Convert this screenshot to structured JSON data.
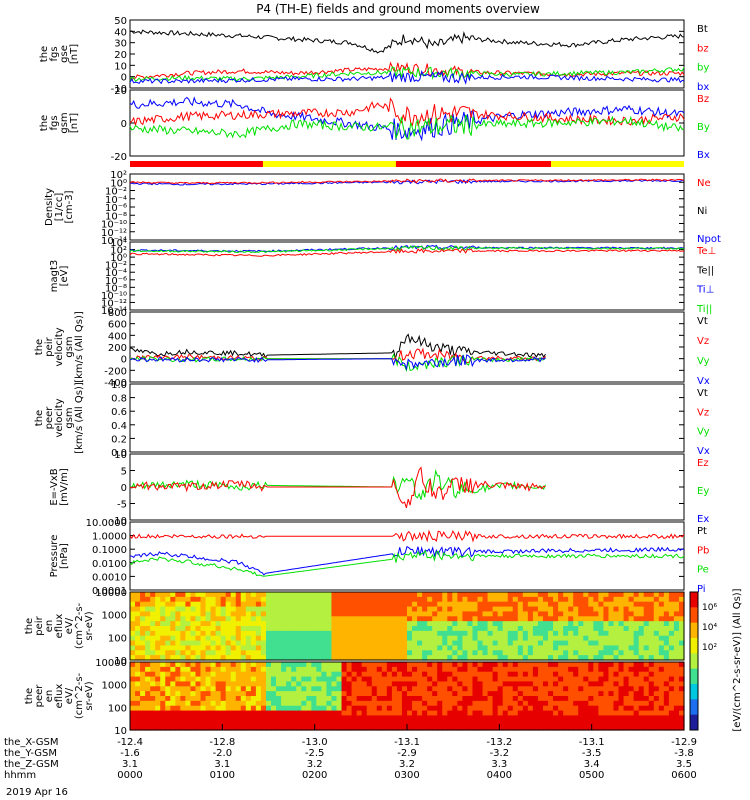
{
  "title": "P4 (TH-E) fields and ground moments overview",
  "date_label": "2019 Apr 16",
  "colors": {
    "black": "#000000",
    "red": "#ff0000",
    "green": "#00e000",
    "blue": "#0000ff",
    "yellow": "#ffff00"
  },
  "chart_data": [
    {
      "type": "line",
      "id": "fgs_gse",
      "ylabel_lines": [
        "the",
        "fgs",
        "gse",
        "[nT]"
      ],
      "ylim": [
        -10,
        50
      ],
      "ticks": [
        "50",
        "40",
        "30",
        "20",
        "10",
        "0",
        "-10"
      ],
      "legend": [
        {
          "name": "Bt",
          "color": "#000000"
        },
        {
          "name": "bz",
          "color": "#ff0000"
        },
        {
          "name": "by",
          "color": "#00e000"
        },
        {
          "name": "bx",
          "color": "#0000ff"
        }
      ],
      "series": [
        {
          "name": "Bt",
          "color": "#000000",
          "x": [
            0,
            0.1,
            0.2,
            0.3,
            0.4,
            0.45,
            0.5,
            0.55,
            0.6,
            0.7,
            0.8,
            0.9,
            1
          ],
          "values": [
            40,
            38,
            36,
            33,
            30,
            22,
            35,
            27,
            34,
            30,
            28,
            33,
            36
          ]
        },
        {
          "name": "bz",
          "color": "#ff0000",
          "x": [
            0,
            0.1,
            0.2,
            0.3,
            0.4,
            0.5,
            0.6,
            0.7,
            0.8,
            0.9,
            1
          ],
          "values": [
            -1,
            3,
            5,
            3,
            6,
            8,
            4,
            3,
            2,
            3,
            3
          ]
        },
        {
          "name": "by",
          "color": "#00e000",
          "x": [
            0,
            0.1,
            0.2,
            0.3,
            0.4,
            0.5,
            0.6,
            0.7,
            0.8,
            0.9,
            1
          ],
          "values": [
            -2,
            -1,
            -2,
            0,
            3,
            4,
            3,
            2,
            3,
            4,
            7
          ]
        },
        {
          "name": "bx",
          "color": "#0000ff",
          "x": [
            0,
            0.1,
            0.2,
            0.3,
            0.4,
            0.5,
            0.6,
            0.7,
            0.8,
            0.9,
            1
          ],
          "values": [
            -4,
            -4,
            -3,
            -2,
            -2,
            0,
            -1,
            0,
            -1,
            -2,
            -3
          ]
        }
      ]
    },
    {
      "type": "line",
      "id": "fgs_gsm",
      "ylabel_lines": [
        "the",
        "fgs",
        "gsm",
        "[nT]"
      ],
      "ylim": [
        -25,
        20
      ],
      "ticks": [
        "20",
        "0",
        "-20"
      ],
      "legend": [
        {
          "name": "Bz",
          "color": "#ff0000"
        },
        {
          "name": "By",
          "color": "#00e000"
        },
        {
          "name": "Bx",
          "color": "#0000ff"
        }
      ],
      "series": [
        {
          "name": "Bx",
          "color": "#0000ff",
          "x": [
            0,
            0.1,
            0.2,
            0.25,
            0.3,
            0.4,
            0.5,
            0.6,
            0.7,
            0.8,
            0.9,
            1
          ],
          "values": [
            10,
            12,
            10,
            4,
            2,
            -3,
            -8,
            -2,
            3,
            5,
            7,
            3
          ]
        },
        {
          "name": "Bz",
          "color": "#ff0000",
          "x": [
            0,
            0.1,
            0.2,
            0.3,
            0.4,
            0.45,
            0.5,
            0.6,
            0.7,
            0.8,
            0.9,
            1
          ],
          "values": [
            -2,
            2,
            3,
            4,
            5,
            10,
            3,
            4,
            2,
            0,
            -1,
            2
          ]
        },
        {
          "name": "By",
          "color": "#00e000",
          "x": [
            0,
            0.1,
            0.2,
            0.3,
            0.4,
            0.5,
            0.6,
            0.7,
            0.8,
            0.9,
            1
          ],
          "values": [
            -6,
            -8,
            -10,
            -3,
            -5,
            -6,
            -4,
            -3,
            -2,
            -1,
            -7
          ]
        }
      ]
    },
    {
      "type": "line",
      "id": "density",
      "log": true,
      "ylabel_lines": [
        "Density",
        "[1/cc]",
        "[cm-3]"
      ],
      "ylim": [
        -14,
        2
      ],
      "ticks": [
        "10²",
        "10⁰",
        "10⁻²",
        "10⁻⁴",
        "10⁻⁶",
        "10⁻⁸",
        "10⁻¹⁰",
        "10⁻¹²",
        "10⁻¹⁴"
      ],
      "legend": [
        {
          "name": "Ne",
          "color": "#ff0000"
        },
        {
          "name": "Ni",
          "color": "#000000"
        },
        {
          "name": "Npot",
          "color": "#0000ff"
        }
      ],
      "series": [
        {
          "name": "Npot",
          "color": "#0000ff",
          "x": [
            0,
            0.1,
            0.2,
            0.24,
            0.5,
            1
          ],
          "values": [
            -0.3,
            -0.5,
            -0.4,
            -0.4,
            0.1,
            0.4
          ]
        },
        {
          "name": "Ne",
          "color": "#ff0000",
          "x": [
            0,
            0.1,
            0.2,
            0.24,
            0.5,
            1
          ],
          "values": [
            0,
            -0.2,
            -0.1,
            -0.1,
            0.3,
            0.6
          ]
        }
      ]
    },
    {
      "type": "line",
      "id": "temperature",
      "log": true,
      "ylabel_lines": [
        "magt3",
        "[eV]"
      ],
      "ylim": [
        -14,
        6
      ],
      "ticks": [
        "10⁴",
        "10²",
        "10⁰",
        "10⁻²",
        "10⁻⁴",
        "10⁻⁶",
        "10⁻⁸",
        "10⁻¹⁰",
        "10⁻¹²",
        "10⁻¹⁴"
      ],
      "legend": [
        {
          "name": "Te⊥",
          "color": "#ff0000"
        },
        {
          "name": "Te||",
          "color": "#000000"
        },
        {
          "name": "Ti⊥",
          "color": "#0000ff"
        },
        {
          "name": "Ti||",
          "color": "#00e000"
        }
      ],
      "series": [
        {
          "name": "Ti⊥",
          "color": "#0000ff",
          "x": [
            0,
            0.24,
            0.5,
            1
          ],
          "values": [
            3.6,
            3.3,
            4.4,
            4.2
          ]
        },
        {
          "name": "Ti||",
          "color": "#00e000",
          "x": [
            0,
            0.24,
            0.5,
            1
          ],
          "values": [
            3.4,
            3.1,
            4.2,
            4.1
          ]
        },
        {
          "name": "Te⊥",
          "color": "#ff0000",
          "x": [
            0,
            0.24,
            0.5,
            1
          ],
          "values": [
            2.5,
            2.0,
            3.3,
            3.5
          ]
        }
      ]
    },
    {
      "type": "line",
      "id": "peir_velocity",
      "ylabel_lines": [
        "the",
        "peir",
        "velocity",
        "gsm",
        "[km/s (All Qs)]"
      ],
      "ylim": [
        -400,
        800
      ],
      "ticks": [
        "800",
        "600",
        "400",
        "200",
        "0",
        "-200",
        "-400"
      ],
      "legend": [
        {
          "name": "Vt",
          "color": "#000000"
        },
        {
          "name": "Vz",
          "color": "#ff0000"
        },
        {
          "name": "Vy",
          "color": "#00e000"
        },
        {
          "name": "Vx",
          "color": "#0000ff"
        }
      ],
      "series": [
        {
          "name": "Vt",
          "color": "#000000",
          "x": [
            0,
            0.05,
            0.1,
            0.2,
            0.24,
            0.48,
            0.5,
            0.52,
            0.55,
            0.6,
            0.7,
            0.75
          ],
          "values": [
            150,
            80,
            120,
            90,
            60,
            100,
            400,
            300,
            200,
            120,
            80,
            50
          ]
        },
        {
          "name": "Vz",
          "color": "#ff0000",
          "x": [
            0,
            0.1,
            0.2,
            0.24,
            0.48,
            0.5,
            0.55,
            0.6,
            0.7,
            0.75
          ],
          "values": [
            20,
            30,
            10,
            0,
            0,
            100,
            60,
            20,
            10,
            0
          ]
        },
        {
          "name": "Vy",
          "color": "#00e000",
          "x": [
            0,
            0.1,
            0.24,
            0.48,
            0.5,
            0.55,
            0.6,
            0.75
          ],
          "values": [
            0,
            -20,
            0,
            0,
            -150,
            -50,
            -30,
            0
          ]
        },
        {
          "name": "Vx",
          "color": "#0000ff",
          "x": [
            0,
            0.24,
            0.48,
            0.5,
            0.6,
            0.75
          ],
          "values": [
            -10,
            -20,
            0,
            -100,
            -30,
            -10
          ]
        }
      ]
    },
    {
      "type": "line",
      "id": "peer_velocity",
      "ylabel_lines": [
        "the",
        "peer",
        "velocity",
        "gsm",
        "[km/s (All Qs)]"
      ],
      "ylim": [
        0,
        1
      ],
      "ticks": [
        "1.0",
        "0.8",
        "0.6",
        "0.4",
        "0.2",
        "0.0"
      ],
      "legend": [
        {
          "name": "Vt",
          "color": "#000000"
        },
        {
          "name": "Vz",
          "color": "#ff0000"
        },
        {
          "name": "Vy",
          "color": "#00e000"
        },
        {
          "name": "Vx",
          "color": "#0000ff"
        }
      ],
      "series": []
    },
    {
      "type": "line",
      "id": "efield",
      "ylabel_lines": [
        "E=-VxB",
        "[mV/m]"
      ],
      "ylim": [
        -10,
        10
      ],
      "ticks": [
        "10",
        "5",
        "0",
        "-5",
        "-10"
      ],
      "legend": [
        {
          "name": "Ez",
          "color": "#ff0000"
        },
        {
          "name": "Ey",
          "color": "#00e000"
        },
        {
          "name": "Ex",
          "color": "#0000ff"
        }
      ],
      "series": [
        {
          "name": "Ey",
          "color": "#00e000",
          "x": [
            0,
            0.1,
            0.2,
            0.24,
            0.48,
            0.5,
            0.52,
            0.55,
            0.6,
            0.7,
            0.75
          ],
          "values": [
            0,
            1,
            0,
            0.5,
            0,
            5,
            -3,
            2,
            -1,
            0.5,
            0
          ]
        },
        {
          "name": "Ez",
          "color": "#ff0000",
          "x": [
            0,
            0.1,
            0.2,
            0.24,
            0.48,
            0.5,
            0.52,
            0.55,
            0.6,
            0.7,
            0.75
          ],
          "values": [
            0.5,
            0,
            1,
            0,
            0,
            -6,
            4,
            -2,
            1,
            0,
            0
          ]
        }
      ]
    },
    {
      "type": "line",
      "id": "pressure",
      "log": true,
      "ylabel_lines": [
        "Pressure",
        "[nPa]"
      ],
      "ylim": [
        -4,
        1
      ],
      "ticks": [
        "10.0000",
        "1.0000",
        "0.1000",
        "0.0100",
        "0.0010",
        "0.0001"
      ],
      "legend": [
        {
          "name": "Pt",
          "color": "#000000"
        },
        {
          "name": "Pb",
          "color": "#ff0000"
        },
        {
          "name": "Pe",
          "color": "#00e000"
        },
        {
          "name": "Pi",
          "color": "#0000ff"
        }
      ],
      "series": [
        {
          "name": "Pb",
          "color": "#ff0000",
          "x": [
            0,
            0.5,
            1
          ],
          "values": [
            -0.05,
            -0.05,
            -0.05
          ]
        },
        {
          "name": "Pi",
          "color": "#0000ff",
          "x": [
            0,
            0.05,
            0.1,
            0.2,
            0.24,
            0.48,
            0.5,
            0.6,
            0.8,
            1
          ],
          "values": [
            -1.6,
            -1.3,
            -1.5,
            -2,
            -2.8,
            -1.3,
            -1.1,
            -1.2,
            -1.1,
            -1.0
          ]
        },
        {
          "name": "Pe",
          "color": "#00e000",
          "x": [
            0,
            0.05,
            0.1,
            0.2,
            0.24,
            0.48,
            0.5,
            0.6,
            0.8,
            1
          ],
          "values": [
            -2,
            -1.7,
            -1.9,
            -2.5,
            -3,
            -1.7,
            -1.4,
            -1.5,
            -1.5,
            -1.5
          ]
        }
      ]
    },
    {
      "type": "heatmap",
      "id": "peir_eflux",
      "ylabel_lines": [
        "the",
        "peir",
        "en",
        "eflux",
        "eV/",
        "(cm^2-s-",
        "sr-eV)"
      ],
      "ticks": [
        "10000",
        "1000",
        "100",
        "10"
      ]
    },
    {
      "type": "heatmap",
      "id": "peer_eflux",
      "ylabel_lines": [
        "the",
        "peer",
        "en",
        "eflux",
        "eV/",
        "(cm^2-s-",
        "sr-eV)"
      ],
      "ticks": [
        "10000",
        "1000",
        "100",
        "10"
      ]
    }
  ],
  "colorbar": {
    "label": "[eV/(cm^2-s-sr-eV)] (All Qs)]",
    "ticks": [
      "10⁶",
      "10⁴",
      "10²"
    ]
  },
  "flag_bar": {
    "segments": [
      {
        "from": 0,
        "to": 0.24,
        "color": "#ff0000"
      },
      {
        "from": 0.24,
        "to": 0.48,
        "color": "#ffff00"
      },
      {
        "from": 0.48,
        "to": 0.76,
        "color": "#ff0000"
      },
      {
        "from": 0.76,
        "to": 1,
        "color": "#ffff00"
      }
    ]
  },
  "x_axis": {
    "rows": [
      {
        "label": "the_X-GSM",
        "values": [
          "-12.4",
          "-12.8",
          "-13.0",
          "-13.1",
          "-13.2",
          "-13.1",
          "-12.9"
        ]
      },
      {
        "label": "the_Y-GSM",
        "values": [
          "-1.6",
          "-2.0",
          "-2.5",
          "-2.9",
          "-3.2",
          "-3.5",
          "-3.8"
        ]
      },
      {
        "label": "the_Z-GSM",
        "values": [
          "3.1",
          "3.1",
          "3.2",
          "3.2",
          "3.3",
          "3.4",
          "3.5"
        ]
      },
      {
        "label": "hhmm",
        "values": [
          "0000",
          "0100",
          "0200",
          "0300",
          "0400",
          "0500",
          "0600"
        ]
      }
    ]
  }
}
